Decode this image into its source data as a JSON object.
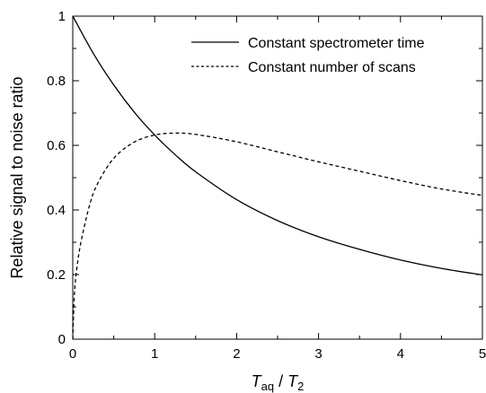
{
  "chart_data": {
    "type": "line",
    "xlabel": {
      "main": "T",
      "sub1": "aq",
      "sep": " / ",
      "main2": "T",
      "sub2": "2"
    },
    "ylabel": "Relative signal to noise ratio",
    "xlim": [
      0,
      5
    ],
    "ylim": [
      0,
      1
    ],
    "xticks": [
      "0",
      "1",
      "2",
      "3",
      "4",
      "5"
    ],
    "yticks": [
      "0",
      "0.2",
      "0.4",
      "0.6",
      "0.8",
      "1"
    ],
    "grid": false,
    "legend_position": "top-right",
    "series": [
      {
        "name": "Constant spectrometer time",
        "style": "solid",
        "color": "#000000",
        "x": [
          0,
          0.25,
          0.5,
          0.75,
          1,
          1.25,
          1.5,
          2,
          2.5,
          3,
          3.5,
          4,
          4.5,
          5
        ],
        "y": [
          1.0,
          0.885,
          0.787,
          0.703,
          0.632,
          0.571,
          0.518,
          0.432,
          0.367,
          0.317,
          0.278,
          0.245,
          0.219,
          0.199
        ]
      },
      {
        "name": "Constant number of scans",
        "style": "dashed",
        "color": "#000000",
        "x": [
          0,
          0.02,
          0.05,
          0.1,
          0.2,
          0.3,
          0.5,
          0.75,
          1,
          1.25,
          1.5,
          2,
          2.5,
          3,
          3.5,
          4,
          4.5,
          5
        ],
        "y": [
          0,
          0.14,
          0.22,
          0.3,
          0.41,
          0.48,
          0.56,
          0.61,
          0.632,
          0.638,
          0.634,
          0.611,
          0.58,
          0.549,
          0.52,
          0.491,
          0.465,
          0.445
        ]
      }
    ]
  }
}
